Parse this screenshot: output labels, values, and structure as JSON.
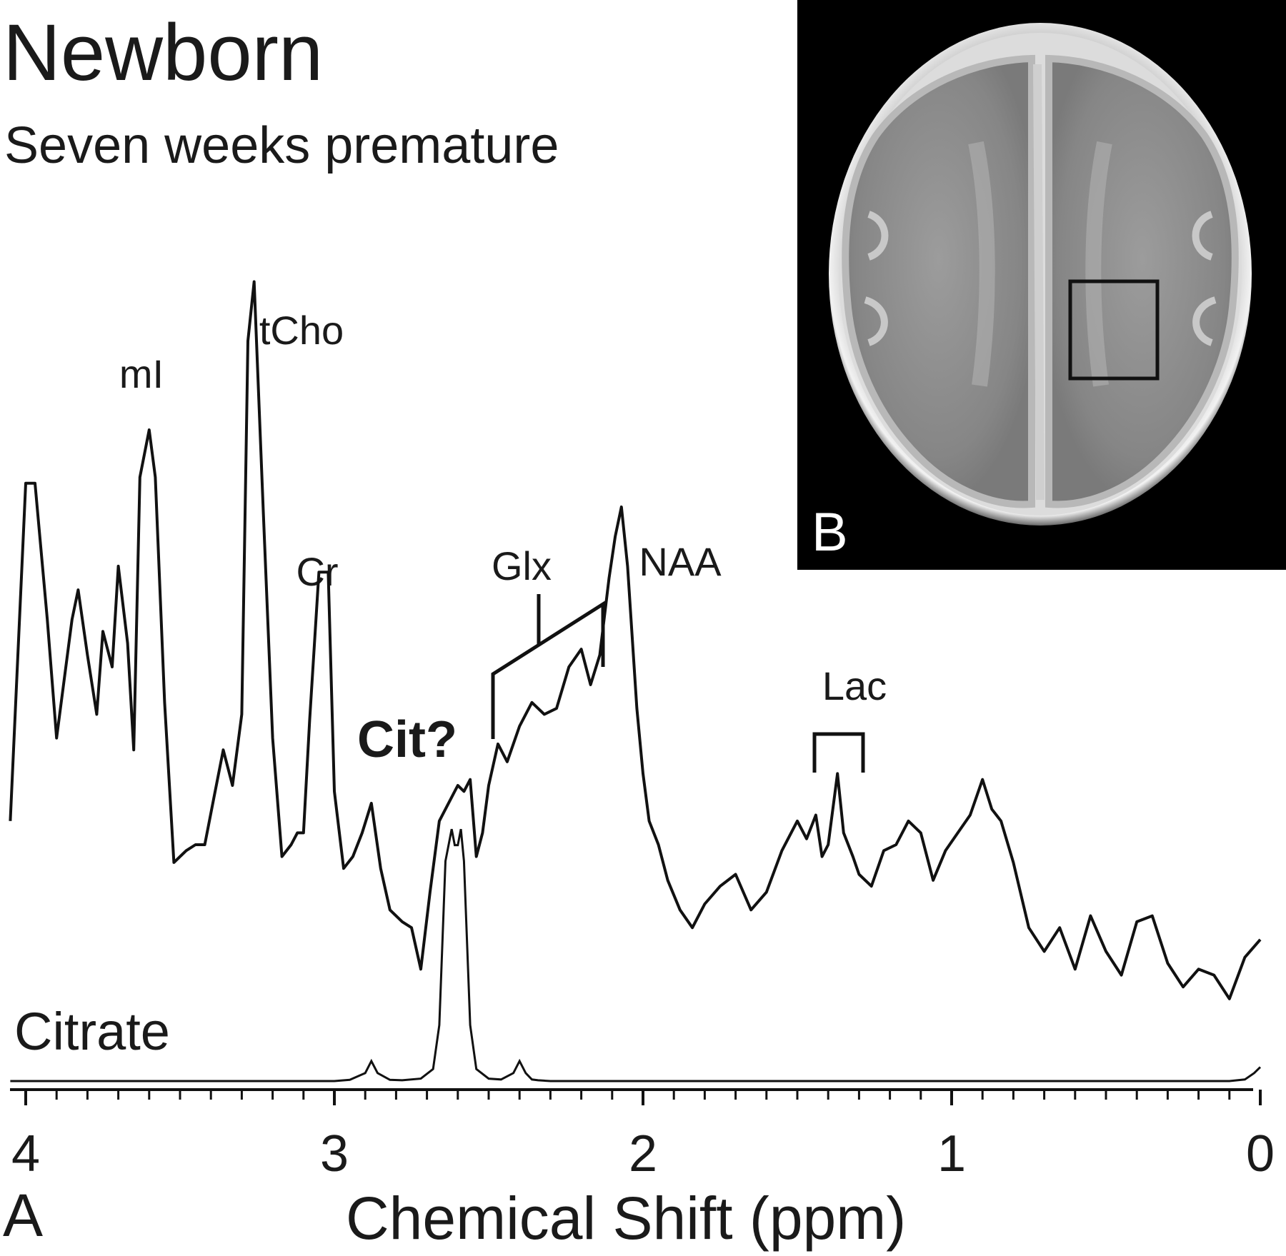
{
  "figure": {
    "title": "Newborn",
    "subtitle": "Seven weeks premature",
    "panel_a": "A",
    "panel_b": "B"
  },
  "chart_data": {
    "type": "line",
    "xlabel": "Chemical Shift (ppm)",
    "ylabel": "",
    "xlim": [
      4.05,
      0.0
    ],
    "x_reversed": true,
    "x_ticks": [
      "4",
      "3",
      "2",
      "1",
      "0"
    ],
    "x_tick_values": [
      4,
      3,
      2,
      1,
      0
    ],
    "y_units": "relative signal intensity (not printed)",
    "series": [
      {
        "role": "measured",
        "x": [
          4.05,
          4.0,
          3.97,
          3.93,
          3.9,
          3.85,
          3.83,
          3.8,
          3.77,
          3.75,
          3.72,
          3.7,
          3.67,
          3.65,
          3.63,
          3.6,
          3.58,
          3.55,
          3.52,
          3.48,
          3.45,
          3.42,
          3.39,
          3.36,
          3.33,
          3.3,
          3.28,
          3.26,
          3.23,
          3.2,
          3.17,
          3.14,
          3.12,
          3.1,
          3.08,
          3.05,
          3.02,
          3.0,
          2.97,
          2.94,
          2.91,
          2.88,
          2.85,
          2.82,
          2.78,
          2.75,
          2.72,
          2.69,
          2.66,
          2.63,
          2.6,
          2.58,
          2.56,
          2.54,
          2.52,
          2.5,
          2.47,
          2.44,
          2.4,
          2.36,
          2.32,
          2.28,
          2.24,
          2.2,
          2.17,
          2.14,
          2.11,
          2.09,
          2.07,
          2.05,
          2.02,
          2.0,
          1.98,
          1.95,
          1.92,
          1.88,
          1.84,
          1.8,
          1.75,
          1.7,
          1.65,
          1.6,
          1.55,
          1.5,
          1.47,
          1.44,
          1.42,
          1.4,
          1.37,
          1.35,
          1.32,
          1.3,
          1.26,
          1.22,
          1.18,
          1.14,
          1.1,
          1.06,
          1.02,
          0.98,
          0.94,
          0.9,
          0.87,
          0.84,
          0.8,
          0.75,
          0.7,
          0.65,
          0.6,
          0.55,
          0.5,
          0.45,
          0.4,
          0.35,
          0.3,
          0.25,
          0.2,
          0.15,
          0.1,
          0.05,
          0.0
        ],
        "y": [
          14,
          71,
          71,
          48,
          28,
          48,
          53,
          42,
          32,
          46,
          40,
          57,
          44,
          26,
          72,
          80,
          72,
          34,
          7,
          9,
          10,
          10,
          18,
          26,
          20,
          32,
          95,
          105,
          66,
          28,
          8,
          10,
          12,
          12,
          31,
          56,
          56,
          19,
          6,
          8,
          12,
          17,
          6,
          -1,
          -3,
          -4,
          -11,
          2,
          14,
          17,
          20,
          19,
          21,
          8,
          12,
          20,
          27,
          24,
          30,
          34,
          32,
          33,
          40,
          43,
          37,
          42,
          55,
          62,
          67,
          57,
          33,
          22,
          14,
          10,
          4,
          -1,
          -4,
          0,
          3,
          5,
          -1,
          2,
          9,
          14,
          11,
          15,
          8,
          10,
          22,
          12,
          8,
          5,
          3,
          9,
          10,
          14,
          12,
          4,
          9,
          12,
          15,
          21,
          16,
          14,
          7,
          -4,
          -8,
          -4,
          -11,
          -2,
          -8,
          -12,
          -3,
          -2,
          -10,
          -14,
          -11,
          -12,
          -16,
          -9,
          -6
        ]
      },
      {
        "name": "Citrate",
        "role": "reference",
        "x": [
          4.05,
          3.0,
          2.95,
          2.9,
          2.88,
          2.86,
          2.82,
          2.78,
          2.72,
          2.68,
          2.66,
          2.64,
          2.62,
          2.61,
          2.6,
          2.59,
          2.58,
          2.56,
          2.54,
          2.5,
          2.46,
          2.42,
          2.4,
          2.38,
          2.36,
          2.34,
          2.3,
          2.2,
          1.0,
          0.1,
          0.05,
          0.02,
          0.0
        ],
        "y": [
          0,
          0,
          0.3,
          2,
          5,
          2,
          0.3,
          0.2,
          0.6,
          3,
          14,
          55,
          63,
          59,
          59,
          63,
          55,
          14,
          3,
          0.6,
          0.4,
          2,
          5,
          2,
          0.4,
          0.2,
          0,
          0,
          0,
          0,
          0.4,
          2,
          3.5
        ]
      }
    ],
    "annotations": [
      {
        "label": "mI",
        "x": 3.6,
        "bold": false
      },
      {
        "label": "tCho",
        "x": 3.26,
        "bold": false
      },
      {
        "label": "Cr",
        "x": 3.05,
        "bold": false
      },
      {
        "label": "Glx",
        "x": 2.35,
        "bold": false
      },
      {
        "label": "NAA",
        "x": 2.02,
        "bold": false
      },
      {
        "label": "Lac",
        "x": 1.33,
        "bold": false
      },
      {
        "label": "Cit?",
        "x": 2.6,
        "bold": true
      }
    ],
    "grid": false,
    "legend": "none"
  },
  "mri_inset": {
    "description_icon": "brain-mri-axial-slice",
    "roi_box": true
  },
  "colors": {
    "line": "#111111",
    "mri_background": "#000000",
    "brain_gray": "#8a8a8a",
    "skull_bright": "#e6e6e6"
  }
}
